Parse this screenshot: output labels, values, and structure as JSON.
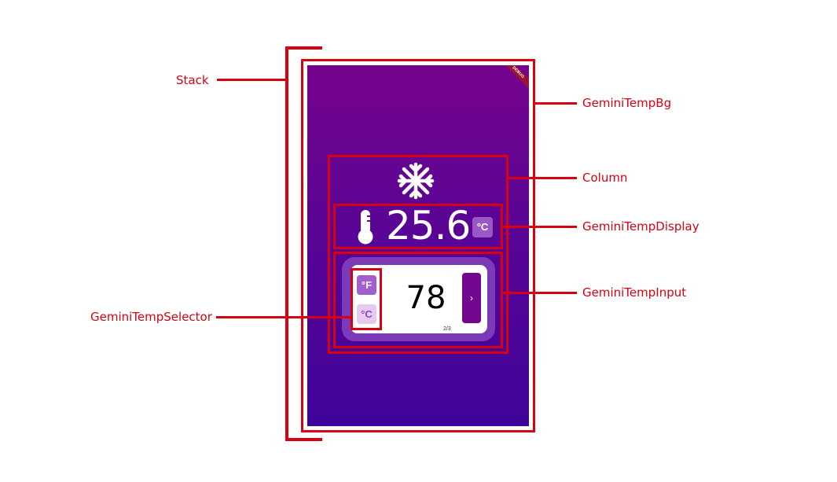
{
  "labels": {
    "stack": "Stack",
    "bg": "GeminiTempBg",
    "column": "Column",
    "display": "GeminiTempDisplay",
    "input": "GeminiTempInput",
    "selector": "GeminiTempSelector"
  },
  "screen": {
    "debug_banner": "DEBUG",
    "mode_icon": "snowflake-icon",
    "display": {
      "icon": "thermometer-icon",
      "temperature": "25.6",
      "unit": "°C"
    },
    "input": {
      "selector": {
        "fahrenheit": "°F",
        "celsius": "°C",
        "selected": "°F"
      },
      "value": "78",
      "next_label": "›",
      "page_indicator": "2/3"
    }
  },
  "colors": {
    "annotation": "#d9000f",
    "gradient_top": "#76038e",
    "gradient_bottom": "#40049a",
    "input_panel": "#7b3bb8",
    "accent": "#72078f"
  }
}
